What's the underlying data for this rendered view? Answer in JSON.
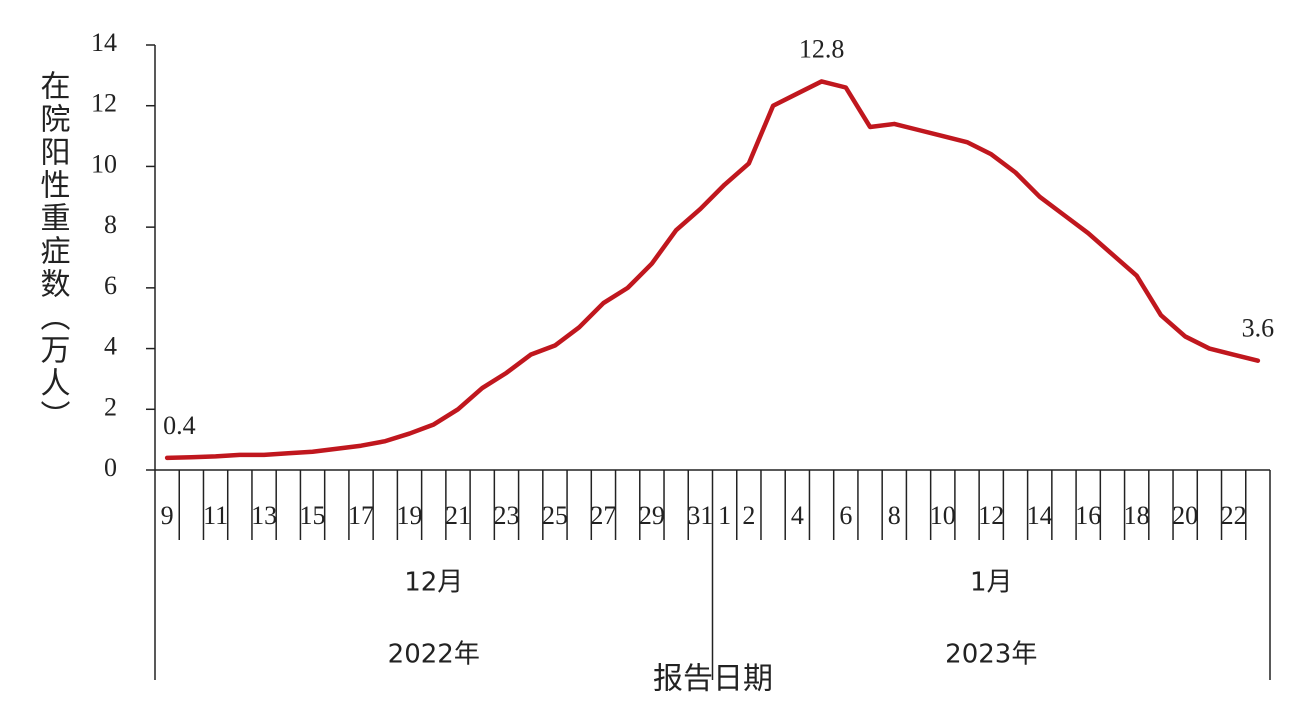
{
  "chart_data": {
    "type": "line",
    "y_label": "在院阳性重症数（万人）",
    "x_label": "报告日期",
    "categories": [
      "9",
      null,
      "11",
      null,
      "13",
      null,
      "15",
      null,
      "17",
      null,
      "19",
      null,
      "21",
      null,
      "23",
      null,
      "25",
      null,
      "27",
      null,
      "29",
      null,
      "31",
      "1",
      "2",
      null,
      "4",
      null,
      "6",
      null,
      "8",
      null,
      "10",
      null,
      "12",
      null,
      "14",
      null,
      "16",
      null,
      "18",
      null,
      "20",
      null,
      "22",
      null
    ],
    "groups": [
      {
        "month": "12月",
        "year": "2022年"
      },
      {
        "month": "1月",
        "year": "2023年"
      }
    ],
    "values": [
      0.4,
      0.42,
      0.45,
      0.5,
      0.5,
      0.55,
      0.6,
      0.7,
      0.8,
      0.95,
      1.2,
      1.5,
      2.0,
      2.7,
      3.2,
      3.8,
      4.1,
      4.7,
      5.5,
      6.0,
      6.8,
      7.9,
      8.6,
      9.4,
      10.1,
      12.0,
      12.4,
      12.8,
      12.6,
      11.3,
      11.4,
      11.2,
      11.0,
      10.8,
      10.4,
      9.8,
      9.0,
      8.4,
      7.8,
      7.1,
      6.4,
      5.1,
      4.4,
      4.0,
      3.8,
      3.6
    ],
    "value_labels": [
      "0.4",
      null,
      null,
      null,
      null,
      null,
      null,
      null,
      null,
      null,
      null,
      null,
      null,
      null,
      null,
      null,
      null,
      null,
      null,
      null,
      null,
      null,
      null,
      null,
      null,
      null,
      null,
      "12.8",
      null,
      null,
      null,
      null,
      null,
      null,
      null,
      null,
      null,
      null,
      null,
      null,
      null,
      null,
      null,
      null,
      null,
      "3.6"
    ],
    "color": "#c0171e",
    "ylim": [
      0,
      14
    ],
    "yticks": [
      0,
      2,
      4,
      6,
      8,
      10,
      12,
      14
    ],
    "grid": false
  }
}
